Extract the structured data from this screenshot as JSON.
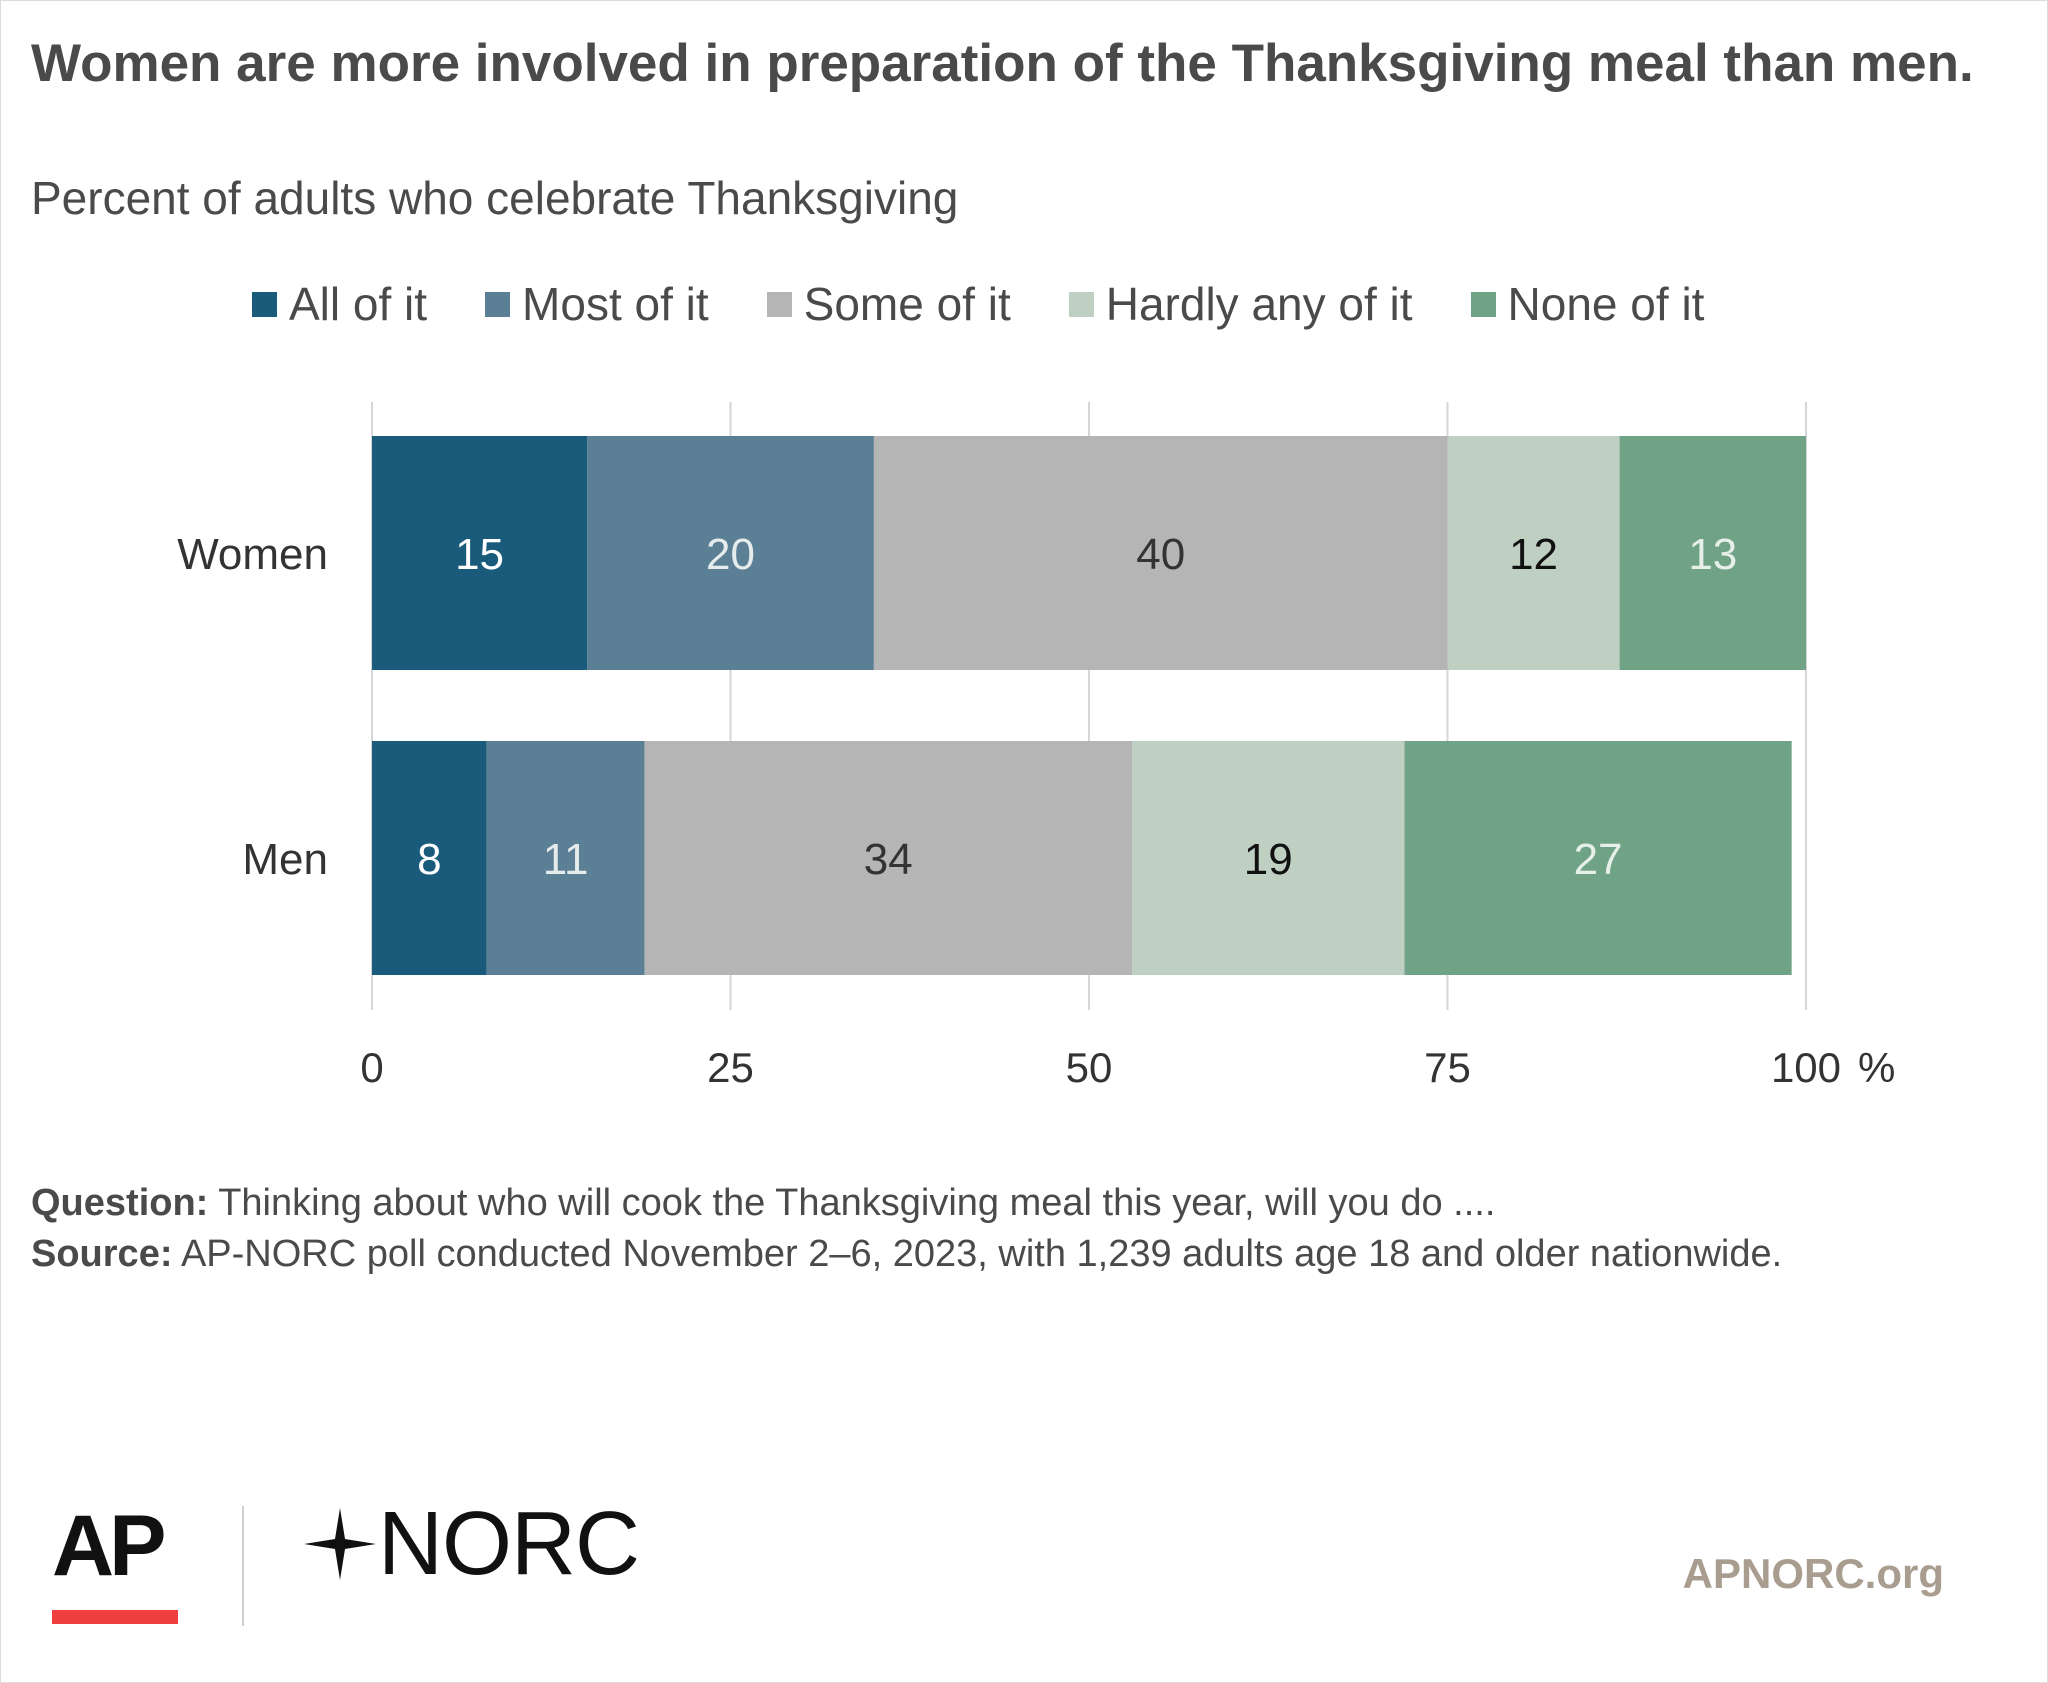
{
  "title": "Women are more involved in preparation of the Thanksgiving meal than men.",
  "subtitle": "Percent of adults who celebrate Thanksgiving",
  "legend": [
    {
      "label": "All of it",
      "color": "#1a5b7c"
    },
    {
      "label": "Most of it",
      "color": "#5b7f94"
    },
    {
      "label": "Some of it",
      "color": "#b5b5b5"
    },
    {
      "label": "Hardly any of it",
      "color": "#bfd0c2"
    },
    {
      "label": "None of it",
      "color": "#70a286"
    }
  ],
  "chart_data": {
    "type": "bar",
    "orientation": "horizontal",
    "stacked": true,
    "categories": [
      "Women",
      "Men"
    ],
    "series": [
      {
        "name": "All of it",
        "values": [
          15,
          8
        ],
        "color": "#1a5b7c",
        "label_color": "#ffffff"
      },
      {
        "name": "Most of it",
        "values": [
          20,
          11
        ],
        "color": "#5b7f94",
        "label_color": "#e6ecec"
      },
      {
        "name": "Some of it",
        "values": [
          40,
          34
        ],
        "color": "#b5b5b5",
        "label_color": "#333333"
      },
      {
        "name": "Hardly any of it",
        "values": [
          12,
          19
        ],
        "color": "#bfd0c2",
        "label_color": "#111111"
      },
      {
        "name": "None of it",
        "values": [
          13,
          27
        ],
        "color": "#70a286",
        "label_color": "#e6efe8"
      }
    ],
    "xlim": [
      0,
      100
    ],
    "x_ticks": [
      "0",
      "25",
      "50",
      "75",
      "100"
    ],
    "x_unit": "%",
    "grid": true,
    "legend_position": "top"
  },
  "notes": {
    "question_label": "Question:",
    "question_text": " Thinking about who will cook the Thanksgiving meal this year, will you do ....",
    "source_label": "Source:",
    "source_text": " AP-NORC poll conducted November 2–6, 2023, with 1,239  adults age 18 and older nationwide."
  },
  "footer": {
    "ap_logo": "AP",
    "norc_logo": "NORC",
    "site": "APNORC.org"
  }
}
